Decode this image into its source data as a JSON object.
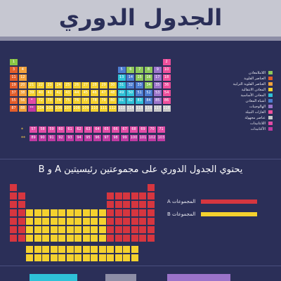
{
  "banner": {
    "title": "الجدول الدوري"
  },
  "subtitle": "يحتوي الجدول الدوري على مجموعتين رئيسيتين A و B",
  "colors": {
    "background": "#2b2f58",
    "banner": "#c6c7d1",
    "alkali": "#e35d2a",
    "alkaline_earth": "#f2a23c",
    "transition": "#f4d12e",
    "basic_metal": "#2ec1d7",
    "metalloid": "#4c7dd0",
    "nonmetal": "#8ec85a",
    "halogen": "#9b73c9",
    "noble_gas": "#ef4f9b",
    "unknown": "#c9c9c9",
    "lanthanide": "#e24ca6",
    "actinide": "#c03aa2",
    "hydrogen": "#8ac644",
    "group_a": "#d6363f",
    "group_b": "#f4d12e"
  },
  "legend": [
    {
      "label": "اللاملامعادن",
      "color": "#8ec85a"
    },
    {
      "label": "العناصر القلوية",
      "color": "#e35d2a"
    },
    {
      "label": "العناصر القلوية الترابية",
      "color": "#f2a23c"
    },
    {
      "label": "المعادن الانتقالية",
      "color": "#f4d12e"
    },
    {
      "label": "المعادن الأساسية",
      "color": "#2ec1d7"
    },
    {
      "label": "أشباه المعادن",
      "color": "#4c7dd0"
    },
    {
      "label": "الهالوجينات",
      "color": "#9b73c9"
    },
    {
      "label": "الغازات النبيلة",
      "color": "#ef4f9b"
    },
    {
      "label": "عناصر مجهولة",
      "color": "#c9c9c9"
    },
    {
      "label": "اللانثانيدات",
      "color": "#e24ca6"
    },
    {
      "label": "الأكتانيدات",
      "color": "#c03aa2"
    }
  ],
  "legend2": [
    {
      "label": "المجموعات A",
      "color": "#d6363f"
    },
    {
      "label": "المجموعات B",
      "color": "#f4d12e"
    }
  ],
  "ext_labels": [
    "*",
    "**"
  ],
  "lanthanides": [
    "57",
    "58",
    "59",
    "60",
    "61",
    "62",
    "63",
    "64",
    "65",
    "66",
    "67",
    "68",
    "69",
    "70",
    "71"
  ],
  "actinides": [
    "89",
    "90",
    "91",
    "92",
    "93",
    "94",
    "95",
    "96",
    "97",
    "98",
    "99",
    "100",
    "101",
    "102",
    "103"
  ],
  "rows": [
    [
      "1",
      "",
      "",
      "",
      "",
      "",
      "",
      "",
      "",
      "",
      "",
      "",
      "",
      "",
      "",
      "",
      "",
      "2"
    ],
    [
      "3",
      "4",
      "",
      "",
      "",
      "",
      "",
      "",
      "",
      "",
      "",
      "",
      "5",
      "6",
      "7",
      "8",
      "9",
      "10"
    ],
    [
      "11",
      "12",
      "",
      "",
      "",
      "",
      "",
      "",
      "",
      "",
      "",
      "",
      "13",
      "14",
      "15",
      "16",
      "17",
      "18"
    ],
    [
      "19",
      "20",
      "21",
      "22",
      "23",
      "24",
      "25",
      "26",
      "27",
      "28",
      "29",
      "30",
      "31",
      "32",
      "33",
      "34",
      "35",
      "36"
    ],
    [
      "37",
      "38",
      "39",
      "40",
      "41",
      "42",
      "43",
      "44",
      "45",
      "46",
      "47",
      "48",
      "49",
      "50",
      "51",
      "52",
      "53",
      "54"
    ],
    [
      "55",
      "56",
      "*",
      "72",
      "73",
      "74",
      "75",
      "76",
      "77",
      "78",
      "79",
      "80",
      "81",
      "82",
      "83",
      "84",
      "85",
      "86"
    ],
    [
      "87",
      "88",
      "**",
      "104",
      "105",
      "106",
      "107",
      "108",
      "109",
      "110",
      "111",
      "112",
      "113",
      "114",
      "115",
      "116",
      "117",
      "118"
    ]
  ]
}
